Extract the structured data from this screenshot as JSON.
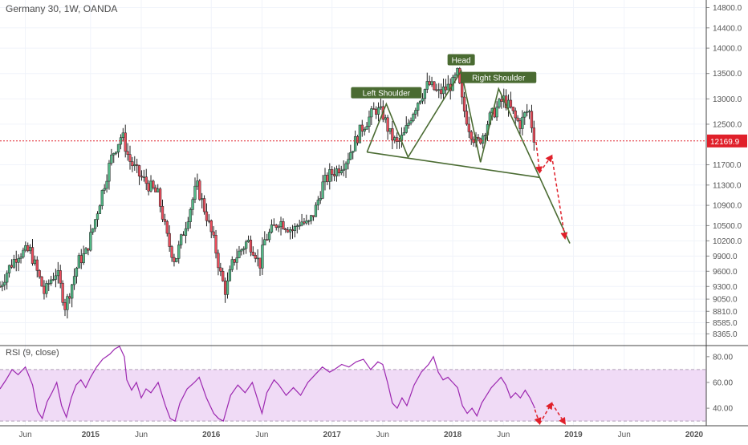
{
  "header": {
    "symbol_title": "Germany 30, 1W, OANDA",
    "rsi_title": "RSI (9, close)"
  },
  "colors": {
    "up": "#53b987",
    "down": "#eb4d5c",
    "pattern": "#4a6b32",
    "arrow": "#e0202a",
    "rsi_line": "#9c27b0",
    "rsi_band": "#f0dbf6",
    "price_tag": "#e0202a",
    "grid": "#f0f3fa",
    "current_line": "#e0202a"
  },
  "chart_data": [
    {
      "type": "candlestick",
      "title": "Germany 30, 1W, OANDA",
      "current_price": 12169.9,
      "current_price_label": "12169.9",
      "ylim": [
        8150,
        14950
      ],
      "price_ticks": [
        {
          "v": 14800,
          "label": "14800.0"
        },
        {
          "v": 14400,
          "label": "14400.0"
        },
        {
          "v": 14000,
          "label": "14000.0"
        },
        {
          "v": 13500,
          "label": "13500.0"
        },
        {
          "v": 13000,
          "label": "13000.0"
        },
        {
          "v": 12500,
          "label": "12500.0"
        },
        {
          "v": 11700,
          "label": "11700.0"
        },
        {
          "v": 11300,
          "label": "11300.0"
        },
        {
          "v": 10900,
          "label": "10900.0"
        },
        {
          "v": 10500,
          "label": "10500.0"
        },
        {
          "v": 10200,
          "label": "10200.0"
        },
        {
          "v": 9900,
          "label": "9900.0"
        },
        {
          "v": 9600,
          "label": "9600.0"
        },
        {
          "v": 9300,
          "label": "9300.0"
        },
        {
          "v": 9050,
          "label": "9050.0"
        },
        {
          "v": 8810,
          "label": "8810.0"
        },
        {
          "v": 8585,
          "label": "8585.0"
        },
        {
          "v": 8365,
          "label": "8365.0"
        }
      ],
      "time_labels": [
        {
          "t": 2014.46,
          "label": "Jun"
        },
        {
          "t": 2015.0,
          "label": "2015"
        },
        {
          "t": 2015.42,
          "label": "Jun"
        },
        {
          "t": 2016.0,
          "label": "2016"
        },
        {
          "t": 2016.42,
          "label": "Jun"
        },
        {
          "t": 2017.0,
          "label": "2017"
        },
        {
          "t": 2017.42,
          "label": "Jun"
        },
        {
          "t": 2018.0,
          "label": "2018"
        },
        {
          "t": 2018.42,
          "label": "Jun"
        },
        {
          "t": 2019.0,
          "label": "2019"
        },
        {
          "t": 2019.42,
          "label": "Jun"
        },
        {
          "t": 2020.0,
          "label": "2020"
        }
      ],
      "xlim": [
        2014.25,
        2020.1
      ],
      "price_path": [
        [
          2014.25,
          9300
        ],
        [
          2014.32,
          9650
        ],
        [
          2014.4,
          9950
        ],
        [
          2014.5,
          10000
        ],
        [
          2014.57,
          9500
        ],
        [
          2014.62,
          9150
        ],
        [
          2014.66,
          9400
        ],
        [
          2014.72,
          9600
        ],
        [
          2014.79,
          8900
        ],
        [
          2014.84,
          9300
        ],
        [
          2014.9,
          9800
        ],
        [
          2014.96,
          9950
        ],
        [
          2015.02,
          10450
        ],
        [
          2015.1,
          11200
        ],
        [
          2015.18,
          11900
        ],
        [
          2015.26,
          12300
        ],
        [
          2015.32,
          11800
        ],
        [
          2015.4,
          11500
        ],
        [
          2015.48,
          11300
        ],
        [
          2015.56,
          11100
        ],
        [
          2015.64,
          10200
        ],
        [
          2015.7,
          9800
        ],
        [
          2015.76,
          10300
        ],
        [
          2015.82,
          10800
        ],
        [
          2015.88,
          11300
        ],
        [
          2015.96,
          10700
        ],
        [
          2016.03,
          10100
        ],
        [
          2016.08,
          9500
        ],
        [
          2016.12,
          9200
        ],
        [
          2016.18,
          9800
        ],
        [
          2016.24,
          10000
        ],
        [
          2016.3,
          10200
        ],
        [
          2016.36,
          10000
        ],
        [
          2016.4,
          9700
        ],
        [
          2016.44,
          10200
        ],
        [
          2016.5,
          10400
        ],
        [
          2016.56,
          10600
        ],
        [
          2016.62,
          10500
        ],
        [
          2016.68,
          10400
        ],
        [
          2016.74,
          10600
        ],
        [
          2016.8,
          10500
        ],
        [
          2016.86,
          10800
        ],
        [
          2016.92,
          11300
        ],
        [
          2016.98,
          11500
        ],
        [
          2017.04,
          11600
        ],
        [
          2017.12,
          11800
        ],
        [
          2017.18,
          12100
        ],
        [
          2017.24,
          12400
        ],
        [
          2017.3,
          12600
        ],
        [
          2017.36,
          12800
        ],
        [
          2017.42,
          12700
        ],
        [
          2017.48,
          12300
        ],
        [
          2017.54,
          12100
        ],
        [
          2017.6,
          12300
        ],
        [
          2017.66,
          12700
        ],
        [
          2017.72,
          13000
        ],
        [
          2017.8,
          13300
        ],
        [
          2017.88,
          13100
        ],
        [
          2017.94,
          13200
        ],
        [
          2018.0,
          13300
        ],
        [
          2018.04,
          13500
        ],
        [
          2018.08,
          12900
        ],
        [
          2018.14,
          12400
        ],
        [
          2018.2,
          12100
        ],
        [
          2018.25,
          12300
        ],
        [
          2018.3,
          12600
        ],
        [
          2018.36,
          12800
        ],
        [
          2018.42,
          13000
        ],
        [
          2018.48,
          12800
        ],
        [
          2018.52,
          12600
        ],
        [
          2018.56,
          12500
        ],
        [
          2018.6,
          12700
        ],
        [
          2018.63,
          12800
        ],
        [
          2018.66,
          12400
        ],
        [
          2018.68,
          12169.9
        ]
      ],
      "annotations": {
        "pattern_labels": [
          "Left Shoulder",
          "Head",
          "Right Shoulder"
        ],
        "pattern_points": [
          [
            2017.29,
            11950
          ],
          [
            2017.45,
            12900
          ],
          [
            2017.63,
            11850
          ],
          [
            2018.07,
            13550
          ],
          [
            2018.23,
            11750
          ],
          [
            2018.38,
            13200
          ],
          [
            2018.72,
            11450
          ]
        ],
        "neckline": [
          [
            2017.29,
            11950
          ],
          [
            2018.72,
            11450
          ]
        ],
        "projection": [
          [
            2018.72,
            11450
          ],
          [
            2018.97,
            10150
          ]
        ],
        "arrows": [
          [
            [
              2018.69,
              12150
            ],
            [
              2018.72,
              11550
            ]
          ],
          [
            [
              2018.72,
              11550
            ],
            [
              2018.82,
              11880
            ]
          ],
          [
            [
              2018.82,
              11880
            ],
            [
              2018.93,
              10250
            ]
          ]
        ]
      }
    },
    {
      "type": "line",
      "title": "RSI (9, close)",
      "ylim": [
        27,
        88
      ],
      "band": [
        30,
        70
      ],
      "ticks": [
        {
          "v": 80,
          "label": "80.00"
        },
        {
          "v": 60,
          "label": "60.00"
        },
        {
          "v": 40,
          "label": "40.00"
        }
      ],
      "series": [
        {
          "values": [
            [
              2014.25,
              55
            ],
            [
              2014.3,
              62
            ],
            [
              2014.35,
              70
            ],
            [
              2014.4,
              66
            ],
            [
              2014.46,
              72
            ],
            [
              2014.52,
              58
            ],
            [
              2014.56,
              38
            ],
            [
              2014.6,
              32
            ],
            [
              2014.64,
              45
            ],
            [
              2014.68,
              52
            ],
            [
              2014.72,
              60
            ],
            [
              2014.76,
              42
            ],
            [
              2014.8,
              33
            ],
            [
              2014.84,
              48
            ],
            [
              2014.88,
              58
            ],
            [
              2014.92,
              62
            ],
            [
              2014.96,
              56
            ],
            [
              2015.0,
              64
            ],
            [
              2015.05,
              72
            ],
            [
              2015.1,
              78
            ],
            [
              2015.16,
              82
            ],
            [
              2015.2,
              86
            ],
            [
              2015.24,
              88
            ],
            [
              2015.28,
              80
            ],
            [
              2015.3,
              62
            ],
            [
              2015.34,
              54
            ],
            [
              2015.38,
              60
            ],
            [
              2015.42,
              48
            ],
            [
              2015.46,
              55
            ],
            [
              2015.5,
              52
            ],
            [
              2015.56,
              60
            ],
            [
              2015.62,
              42
            ],
            [
              2015.66,
              32
            ],
            [
              2015.7,
              30
            ],
            [
              2015.74,
              44
            ],
            [
              2015.8,
              55
            ],
            [
              2015.86,
              60
            ],
            [
              2015.9,
              64
            ],
            [
              2015.96,
              48
            ],
            [
              2016.02,
              36
            ],
            [
              2016.06,
              32
            ],
            [
              2016.1,
              30
            ],
            [
              2016.16,
              50
            ],
            [
              2016.22,
              58
            ],
            [
              2016.28,
              52
            ],
            [
              2016.34,
              60
            ],
            [
              2016.38,
              48
            ],
            [
              2016.42,
              36
            ],
            [
              2016.46,
              52
            ],
            [
              2016.52,
              62
            ],
            [
              2016.56,
              58
            ],
            [
              2016.62,
              50
            ],
            [
              2016.68,
              56
            ],
            [
              2016.74,
              50
            ],
            [
              2016.8,
              60
            ],
            [
              2016.86,
              66
            ],
            [
              2016.92,
              72
            ],
            [
              2016.98,
              68
            ],
            [
              2017.02,
              70
            ],
            [
              2017.08,
              74
            ],
            [
              2017.14,
              72
            ],
            [
              2017.2,
              76
            ],
            [
              2017.26,
              78
            ],
            [
              2017.32,
              70
            ],
            [
              2017.38,
              76
            ],
            [
              2017.42,
              74
            ],
            [
              2017.46,
              60
            ],
            [
              2017.5,
              44
            ],
            [
              2017.54,
              40
            ],
            [
              2017.58,
              48
            ],
            [
              2017.62,
              42
            ],
            [
              2017.68,
              58
            ],
            [
              2017.74,
              68
            ],
            [
              2017.8,
              74
            ],
            [
              2017.84,
              80
            ],
            [
              2017.88,
              68
            ],
            [
              2017.92,
              62
            ],
            [
              2017.96,
              64
            ],
            [
              2018.0,
              60
            ],
            [
              2018.04,
              56
            ],
            [
              2018.08,
              42
            ],
            [
              2018.12,
              36
            ],
            [
              2018.16,
              40
            ],
            [
              2018.2,
              34
            ],
            [
              2018.24,
              44
            ],
            [
              2018.28,
              50
            ],
            [
              2018.32,
              56
            ],
            [
              2018.36,
              60
            ],
            [
              2018.4,
              64
            ],
            [
              2018.44,
              58
            ],
            [
              2018.48,
              48
            ],
            [
              2018.52,
              52
            ],
            [
              2018.56,
              48
            ],
            [
              2018.6,
              54
            ],
            [
              2018.64,
              48
            ],
            [
              2018.68,
              40
            ]
          ]
        }
      ],
      "arrows": [
        [
          [
            2018.68,
            39
          ],
          [
            2018.72,
            28
          ]
        ],
        [
          [
            2018.72,
            28
          ],
          [
            2018.82,
            44
          ]
        ],
        [
          [
            2018.82,
            44
          ],
          [
            2018.93,
            28
          ]
        ]
      ]
    }
  ]
}
